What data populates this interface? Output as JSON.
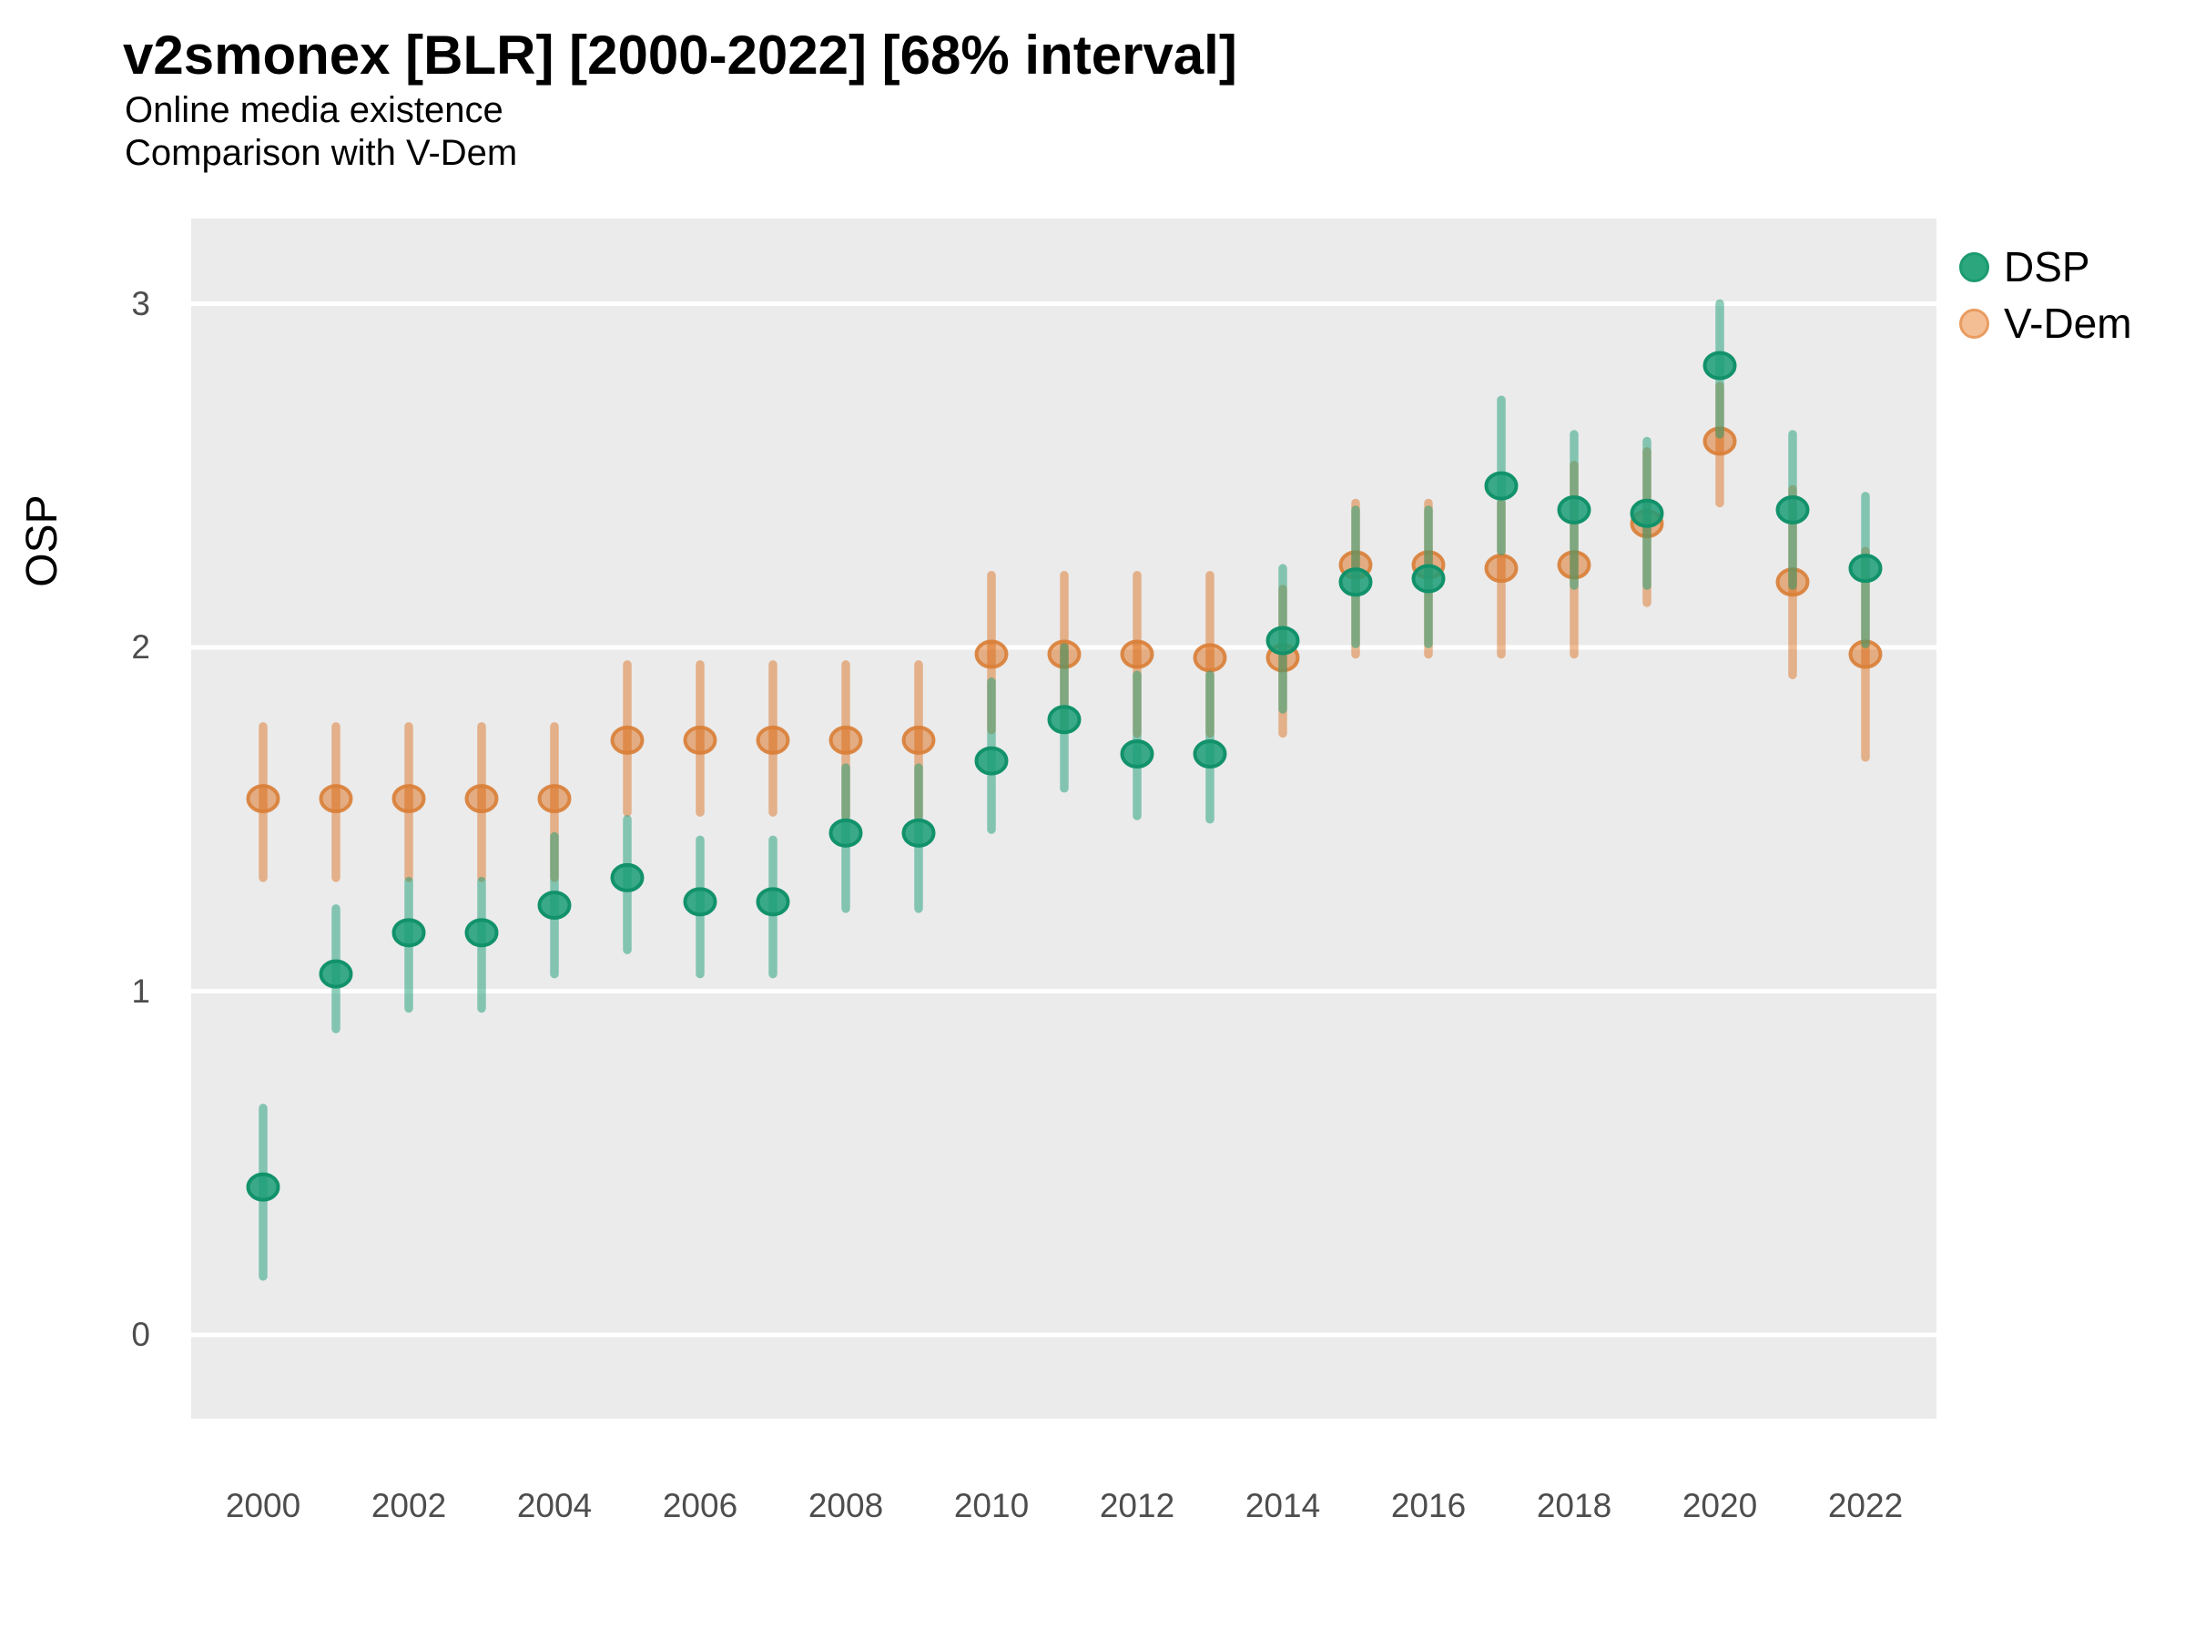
{
  "chart_data": {
    "type": "pointrange",
    "title": "v2smonex [BLR] [2000-2022] [68% interval]",
    "subtitle": "Online media existence",
    "subtitle2": "Comparison with V-Dem",
    "ylabel": "OSP",
    "interval_label": "68% interval",
    "panel_bg": "#EBEBEB",
    "gridline_color": "#FFFFFF",
    "tick_label_color": "#4D4D4D",
    "ylim": [
      -0.24,
      3.25
    ],
    "y_ticks": [
      0,
      1,
      2,
      3
    ],
    "x": [
      2000,
      2001,
      2002,
      2003,
      2004,
      2005,
      2006,
      2007,
      2008,
      2009,
      2010,
      2011,
      2012,
      2013,
      2014,
      2015,
      2016,
      2017,
      2018,
      2019,
      2020,
      2021,
      2022
    ],
    "x_tick_labels": [
      "2000",
      "2002",
      "2004",
      "2006",
      "2008",
      "2010",
      "2012",
      "2014",
      "2016",
      "2018",
      "2020",
      "2022"
    ],
    "grid": "horizontal major gridlines only",
    "legend_position": "right",
    "series": [
      {
        "name": "V-Dem",
        "point_fill": "#D95F02",
        "point_fill_opacity": 0.45,
        "point_stroke": "#D97E36",
        "point_stroke_opacity": 0.9,
        "whisker_color": "#D95F02",
        "whisker_opacity": 0.42,
        "values": [
          1.56,
          1.56,
          1.56,
          1.56,
          1.56,
          1.73,
          1.73,
          1.73,
          1.73,
          1.73,
          1.98,
          1.98,
          1.98,
          1.97,
          1.97,
          2.24,
          2.24,
          2.23,
          2.24,
          2.36,
          2.6,
          2.19,
          1.98
        ],
        "lo": [
          1.33,
          1.33,
          1.33,
          1.33,
          1.33,
          1.52,
          1.52,
          1.52,
          1.51,
          1.51,
          1.76,
          1.76,
          1.75,
          1.75,
          1.75,
          1.98,
          1.98,
          1.98,
          1.98,
          2.13,
          2.42,
          1.92,
          1.68
        ],
        "hi": [
          1.77,
          1.77,
          1.77,
          1.77,
          1.77,
          1.95,
          1.95,
          1.95,
          1.95,
          1.95,
          2.21,
          2.21,
          2.21,
          2.21,
          2.17,
          2.42,
          2.42,
          2.42,
          2.53,
          2.57,
          2.76,
          2.46,
          2.28
        ]
      },
      {
        "name": "DSP",
        "point_fill": "#1B9E77",
        "point_fill_opacity": 0.85,
        "point_stroke": "#12926A",
        "point_stroke_opacity": 1,
        "whisker_color": "#1B9E77",
        "whisker_opacity": 0.5,
        "values": [
          0.43,
          1.05,
          1.17,
          1.17,
          1.25,
          1.33,
          1.26,
          1.26,
          1.46,
          1.46,
          1.67,
          1.79,
          1.69,
          1.69,
          2.02,
          2.19,
          2.2,
          2.47,
          2.4,
          2.39,
          2.82,
          2.4,
          2.23
        ],
        "lo": [
          0.17,
          0.89,
          0.95,
          0.95,
          1.05,
          1.12,
          1.05,
          1.05,
          1.24,
          1.24,
          1.47,
          1.59,
          1.51,
          1.5,
          1.82,
          2.01,
          2.01,
          2.28,
          2.18,
          2.18,
          2.62,
          2.18,
          2.01
        ],
        "hi": [
          0.66,
          1.24,
          1.32,
          1.32,
          1.45,
          1.5,
          1.44,
          1.44,
          1.65,
          1.65,
          1.9,
          2.0,
          1.92,
          1.92,
          2.23,
          2.4,
          2.4,
          2.72,
          2.62,
          2.6,
          3.0,
          2.62,
          2.44
        ]
      }
    ],
    "legend": [
      {
        "label": "DSP",
        "swatch_fill": "#2CA77D",
        "swatch_stroke": "#1C9B6F"
      },
      {
        "label": "V-Dem",
        "swatch_fill": "#F4BE94",
        "swatch_stroke": "#E99C61"
      }
    ]
  }
}
